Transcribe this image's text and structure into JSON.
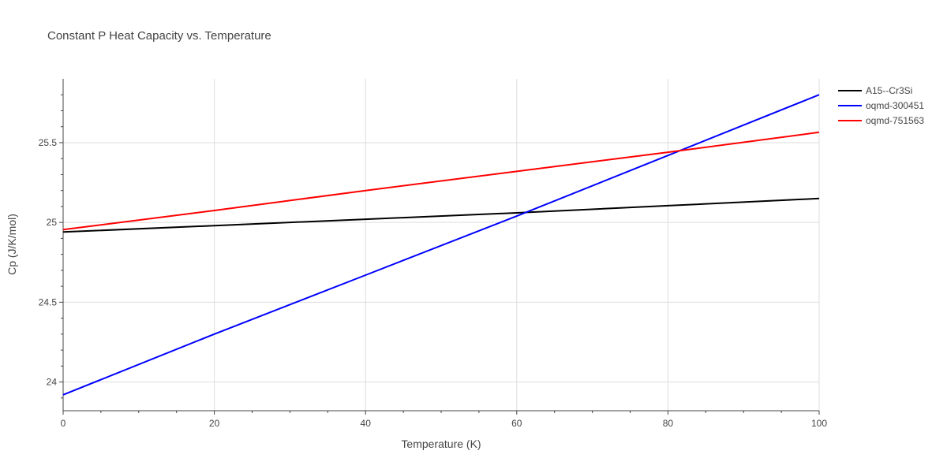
{
  "chart_data": {
    "type": "line",
    "title": "Constant P Heat Capacity vs. Temperature",
    "xlabel": "Temperature (K)",
    "ylabel": "Cp (J/K/mol)",
    "xlim": [
      0,
      100
    ],
    "ylim": [
      23.82,
      25.9
    ],
    "x_ticks": [
      0,
      20,
      40,
      60,
      80,
      100
    ],
    "x_tick_labels": [
      "0",
      "20",
      "40",
      "60",
      "80",
      "100"
    ],
    "y_ticks": [
      24,
      24.5,
      25,
      25.5
    ],
    "y_tick_labels": [
      "24",
      "24.5",
      "25",
      "25.5"
    ],
    "grid": true,
    "legend_position": "top-right",
    "series": [
      {
        "name": "A15--Cr3Si",
        "color": "#000000",
        "x": [
          0,
          20,
          40,
          60,
          80,
          100
        ],
        "values": [
          24.94,
          24.98,
          25.02,
          25.06,
          25.105,
          25.15
        ]
      },
      {
        "name": "oqmd-300451",
        "color": "#0000ff",
        "x": [
          0,
          20,
          40,
          60,
          80,
          100
        ],
        "values": [
          23.92,
          24.3,
          24.67,
          25.04,
          25.42,
          25.8
        ]
      },
      {
        "name": "oqmd-751563",
        "color": "#ff0000",
        "x": [
          0,
          20,
          40,
          60,
          80,
          100
        ],
        "values": [
          24.955,
          25.075,
          25.2,
          25.32,
          25.44,
          25.565
        ]
      }
    ]
  }
}
